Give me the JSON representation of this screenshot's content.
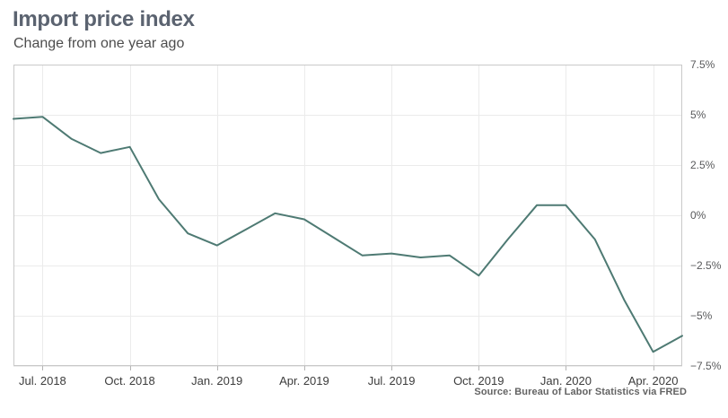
{
  "header": {
    "title": "Import price index",
    "subtitle": "Change from one year ago"
  },
  "source": "Source: Bureau of Labor Statistics via FRED",
  "colors": {
    "line": "#4e7a73",
    "grid": "#ebebeb",
    "frame": "#c9c9c9",
    "tick": "#b5b5b5",
    "axis_label": "#58595b",
    "title": "#5b6370"
  },
  "chart_data": {
    "type": "line",
    "title": "Import price index",
    "subtitle": "Change from one year ago",
    "x": [
      "Jun 2018",
      "Jul 2018",
      "Aug 2018",
      "Sep 2018",
      "Oct 2018",
      "Nov 2018",
      "Dec 2018",
      "Jan 2019",
      "Feb 2019",
      "Mar 2019",
      "Apr 2019",
      "May 2019",
      "Jun 2019",
      "Jul 2019",
      "Aug 2019",
      "Sep 2019",
      "Oct 2019",
      "Nov 2019",
      "Dec 2019",
      "Jan 2020",
      "Feb 2020",
      "Mar 2020",
      "Apr 2020",
      "May 2020"
    ],
    "series": [
      {
        "name": "Import price index, change from one year ago (%)",
        "values": [
          4.8,
          4.9,
          3.8,
          3.1,
          3.4,
          0.8,
          -0.9,
          -1.5,
          -0.7,
          0.1,
          -0.2,
          -1.1,
          -2.0,
          -1.9,
          -2.1,
          -2.0,
          -3.0,
          -1.2,
          0.5,
          0.5,
          -1.2,
          -4.2,
          -6.8,
          -6.0
        ]
      }
    ],
    "ylim": [
      -7.5,
      7.5
    ],
    "y_ticks": [
      7.5,
      5,
      2.5,
      0,
      -2.5,
      -5,
      -7.5
    ],
    "y_tick_labels": [
      "7.5%",
      "5%",
      "2.5%",
      "0%",
      "−2.5%",
      "−5%",
      "−7.5%"
    ],
    "x_tick_indices": [
      1,
      4,
      7,
      10,
      13,
      16,
      19,
      22
    ],
    "x_tick_labels": [
      "Jul. 2018",
      "Oct. 2018",
      "Jan. 2019",
      "Apr. 2019",
      "Jul. 2019",
      "Oct. 2019",
      "Jan. 2020",
      "Apr. 2020"
    ],
    "grid": true,
    "legend": false,
    "ylabel": "",
    "xlabel": ""
  }
}
